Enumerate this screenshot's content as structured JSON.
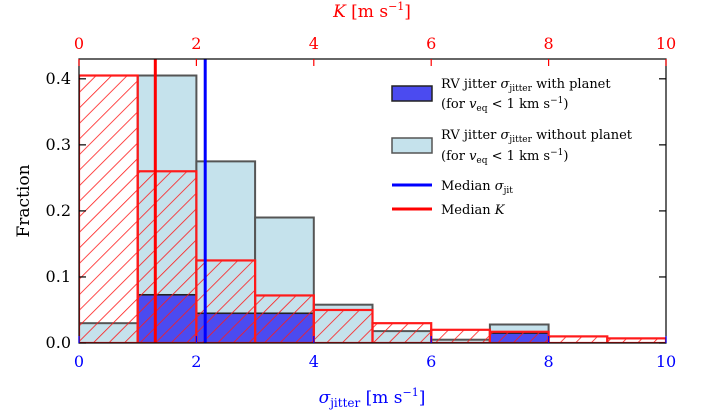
{
  "chart_data": {
    "type": "bar",
    "bin_edges": [
      0,
      1,
      2,
      3,
      4,
      5,
      6,
      7,
      8,
      9,
      10
    ],
    "ylim": [
      0,
      0.43
    ],
    "xlim": [
      0,
      10
    ],
    "yticks": [
      0.0,
      0.1,
      0.2,
      0.3,
      0.4
    ],
    "ytick_labels": [
      "0.0",
      "0.1",
      "0.2",
      "0.3",
      "0.4"
    ],
    "xticks_bottom": [
      0,
      2,
      4,
      6,
      8,
      10
    ],
    "xtick_labels_bottom": [
      "0",
      "2",
      "4",
      "6",
      "8",
      "10"
    ],
    "xticks_top": [
      0,
      2,
      4,
      6,
      8,
      10
    ],
    "xtick_labels_top": [
      "0",
      "2",
      "4",
      "6",
      "8",
      "10"
    ],
    "ylabel": "Fraction",
    "xlabel_bottom": "σjitter [m s−1]",
    "xlabel_top": "K [m s−1]",
    "series": [
      {
        "name": "RV jitter σjitter without planet (for veq < 1 km s−1)",
        "style": "lightblue-filled",
        "values": [
          0.03,
          0.405,
          0.275,
          0.19,
          0.058,
          0.018,
          0.005,
          0.028,
          0.0,
          0.0
        ]
      },
      {
        "name": "RV jitter σjitter with planet (for veq < 1 km s−1)",
        "style": "blue-filled",
        "values": [
          0.0,
          0.073,
          0.045,
          0.045,
          0.0,
          0.0,
          0.0,
          0.015,
          0.0,
          0.0
        ]
      },
      {
        "name": "K",
        "style": "red-hatched",
        "values": [
          0.405,
          0.26,
          0.125,
          0.072,
          0.05,
          0.03,
          0.02,
          0.017,
          0.01,
          0.007
        ]
      }
    ],
    "median_sigma_jit": 2.15,
    "median_K": 1.3,
    "legend": [
      {
        "key": "with",
        "line1_prefix": "RV jitter ",
        "sym": "σ",
        "sub": "jitter",
        "line1_suffix": " with planet",
        "line2": "(for v",
        "line2_sub": "eq",
        "line2_rest": " < 1 km s",
        "line2_sup": "−1",
        "line2_end": ")"
      },
      {
        "key": "without",
        "line1_prefix": "RV jitter ",
        "sym": "σ",
        "sub": "jitter",
        "line1_suffix": " without planet",
        "line2": "(for v",
        "line2_sub": "eq",
        "line2_rest": " < 1 km s",
        "line2_sup": "−1",
        "line2_end": ")"
      },
      {
        "key": "median_sigma",
        "label": "Median ",
        "sym": "σ",
        "sub": "jit"
      },
      {
        "key": "median_K",
        "label": "Median ",
        "sym": "K"
      }
    ],
    "legend_position": "top-right",
    "colors": {
      "without_fill": "#c5e2ec",
      "without_edge": "#555555",
      "with_fill": "#4b4bf0",
      "with_edge": "#222222",
      "hatch": "#ff1a1a",
      "median_sigma": "#0000ff",
      "median_K": "#ff0000",
      "bottom_axis": "#0000ff",
      "top_axis": "#ff0000"
    }
  }
}
